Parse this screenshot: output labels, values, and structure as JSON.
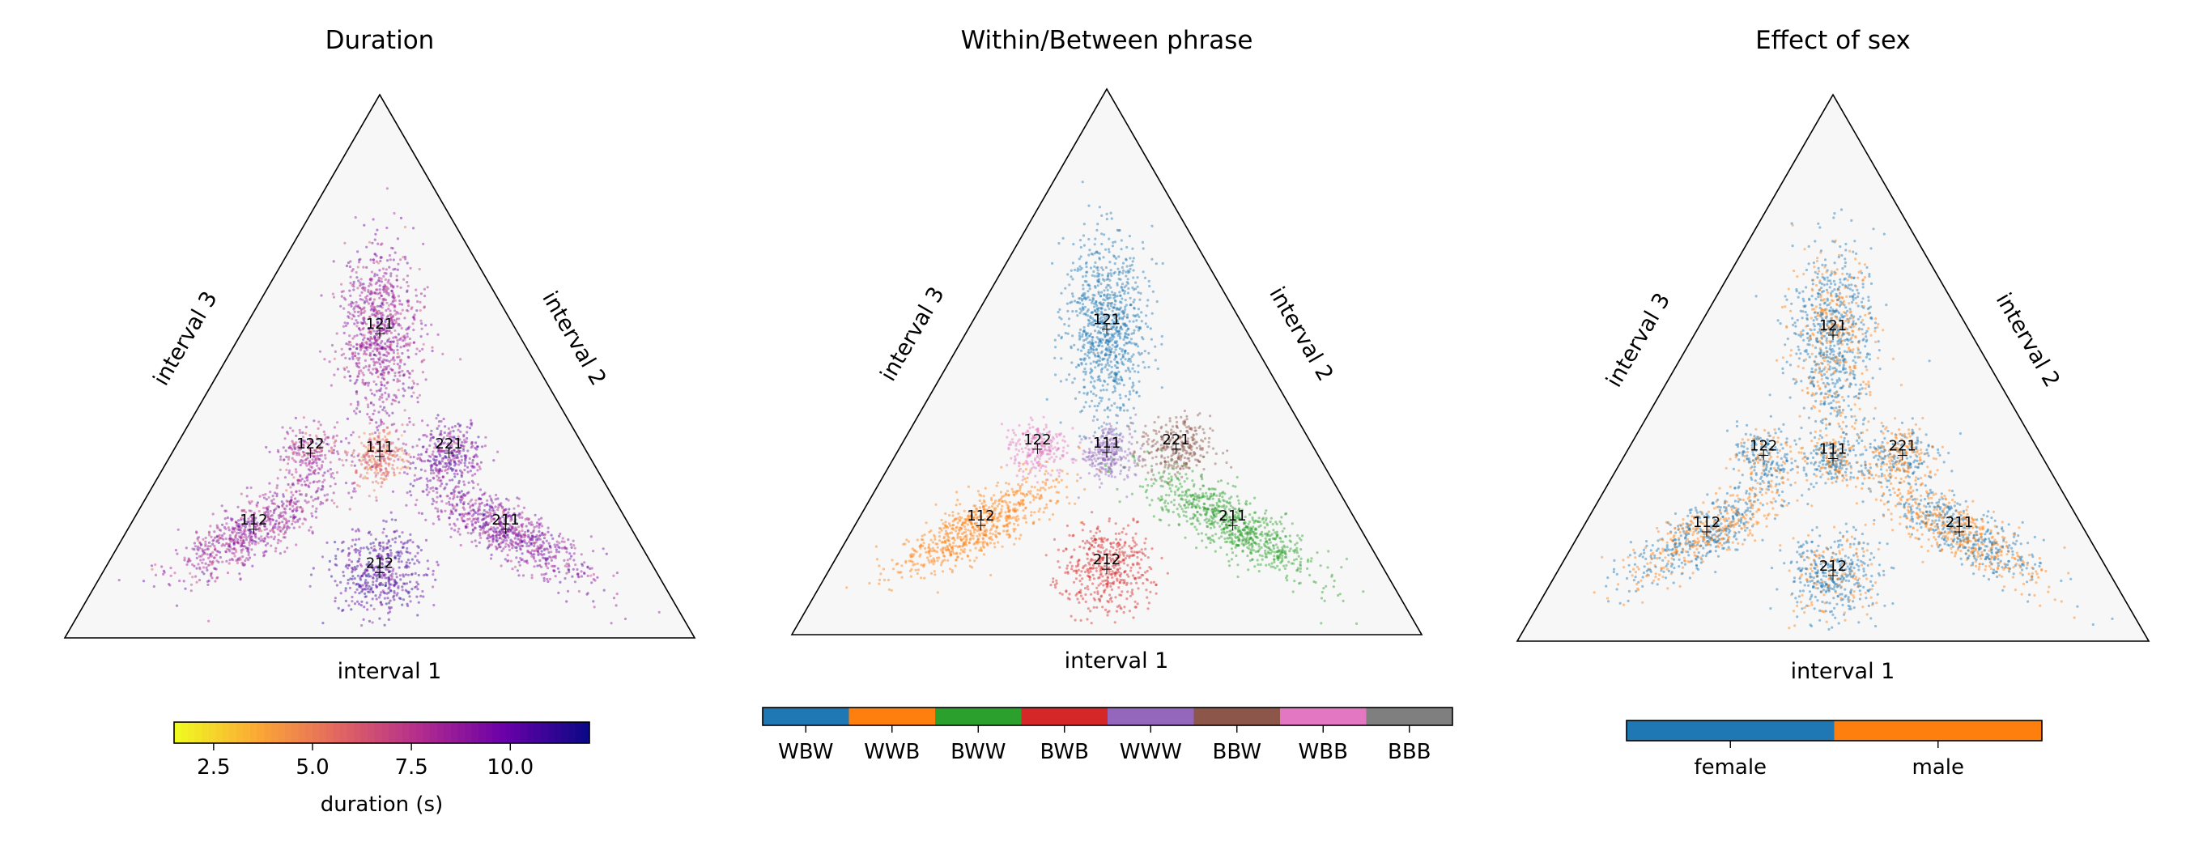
{
  "chart_data": [
    {
      "type": "scatter",
      "title": "Duration",
      "xlabel": "interval 1",
      "ylabel": "interval 3",
      "axis_labels": [
        "interval 1",
        "interval 2",
        "interval 3"
      ],
      "point_labels": [
        "121",
        "122",
        "221",
        "111",
        "112",
        "211",
        "212"
      ],
      "colorbar": {
        "kind": "continuous",
        "label": "duration (s)",
        "range": [
          1.5,
          12.0
        ],
        "ticks": [
          "2.5",
          "5.0",
          "7.5",
          "10.0"
        ],
        "tick_values": [
          2.5,
          5.0,
          7.5,
          10.0
        ],
        "colors": [
          "#f0f921",
          "#fca636",
          "#e16462",
          "#b12a90",
          "#6a00a8",
          "#0d0887"
        ]
      },
      "legend": "bottom",
      "clusters": [
        {
          "name": "121",
          "barycentric": [
            0.22,
            0.22,
            0.56
          ],
          "duration": 8.5
        },
        {
          "name": "122",
          "barycentric": [
            0.22,
            0.44,
            0.34
          ],
          "duration": 8.0
        },
        {
          "name": "221",
          "barycentric": [
            0.44,
            0.22,
            0.34
          ],
          "duration": 9.5
        },
        {
          "name": "111",
          "barycentric": [
            0.333,
            0.333,
            0.334
          ],
          "duration": 5.5
        },
        {
          "name": "112",
          "barycentric": [
            0.2,
            0.6,
            0.2
          ],
          "duration": 8.5
        },
        {
          "name": "211",
          "barycentric": [
            0.6,
            0.2,
            0.2
          ],
          "duration": 9.0
        },
        {
          "name": "212",
          "barycentric": [
            0.44,
            0.44,
            0.12
          ],
          "duration": 10.5
        }
      ]
    },
    {
      "type": "scatter",
      "title": "Within/Between phrase",
      "xlabel": "interval 1",
      "ylabel": "interval 3",
      "axis_labels": [
        "interval 1",
        "interval 2",
        "interval 3"
      ],
      "point_labels": [
        "121",
        "122",
        "221",
        "111",
        "112",
        "211",
        "212"
      ],
      "colorbar": {
        "kind": "categorical",
        "categories": [
          "WBW",
          "WWB",
          "BWW",
          "BWB",
          "WWW",
          "BBW",
          "WBB",
          "BBB"
        ],
        "colors": [
          "#1f77b4",
          "#ff7f0e",
          "#2ca02c",
          "#d62728",
          "#9467bd",
          "#8c564b",
          "#e377c2",
          "#7f7f7f"
        ]
      },
      "legend": "bottom",
      "clusters": [
        {
          "name": "121",
          "barycentric": [
            0.22,
            0.22,
            0.56
          ],
          "category": "WBW"
        },
        {
          "name": "122",
          "barycentric": [
            0.22,
            0.44,
            0.34
          ],
          "category": "WBB"
        },
        {
          "name": "221",
          "barycentric": [
            0.44,
            0.22,
            0.34
          ],
          "category": "BBW"
        },
        {
          "name": "111",
          "barycentric": [
            0.333,
            0.333,
            0.334
          ],
          "category": "WWW"
        },
        {
          "name": "112",
          "barycentric": [
            0.2,
            0.6,
            0.2
          ],
          "category": "WWB"
        },
        {
          "name": "211",
          "barycentric": [
            0.6,
            0.2,
            0.2
          ],
          "category": "BWW"
        },
        {
          "name": "212",
          "barycentric": [
            0.44,
            0.44,
            0.12
          ],
          "category": "BWB"
        }
      ]
    },
    {
      "type": "scatter",
      "title": "Effect of sex",
      "xlabel": "interval 1",
      "ylabel": "interval 3",
      "axis_labels": [
        "interval 1",
        "interval 2",
        "interval 3"
      ],
      "point_labels": [
        "121",
        "122",
        "221",
        "111",
        "112",
        "211",
        "212"
      ],
      "colorbar": {
        "kind": "categorical",
        "categories": [
          "female",
          "male"
        ],
        "colors": [
          "#1f77b4",
          "#ff7f0e"
        ]
      },
      "legend": "bottom",
      "clusters": [
        {
          "name": "121",
          "barycentric": [
            0.22,
            0.22,
            0.56
          ],
          "male_fraction": 0.35
        },
        {
          "name": "122",
          "barycentric": [
            0.22,
            0.44,
            0.34
          ],
          "male_fraction": 0.3
        },
        {
          "name": "221",
          "barycentric": [
            0.44,
            0.22,
            0.34
          ],
          "male_fraction": 0.5
        },
        {
          "name": "111",
          "barycentric": [
            0.333,
            0.333,
            0.334
          ],
          "male_fraction": 0.4
        },
        {
          "name": "112",
          "barycentric": [
            0.2,
            0.6,
            0.2
          ],
          "male_fraction": 0.45
        },
        {
          "name": "211",
          "barycentric": [
            0.6,
            0.2,
            0.2
          ],
          "male_fraction": 0.5
        },
        {
          "name": "212",
          "barycentric": [
            0.44,
            0.44,
            0.12
          ],
          "male_fraction": 0.3
        }
      ]
    }
  ]
}
